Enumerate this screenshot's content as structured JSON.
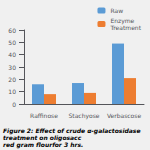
{
  "chart_data": {
    "type": "bar",
    "categories": [
      "Raffinose",
      "Stachyose",
      "Verbascose"
    ],
    "series": [
      {
        "name": "Raw",
        "color": "#5B9BD5",
        "values": [
          16,
          17,
          49
        ]
      },
      {
        "name": "Enzyme\nTreatment",
        "color": "#ED7D31",
        "values": [
          8,
          9,
          21
        ]
      }
    ],
    "ylim": [
      0,
      60
    ],
    "yticks": [
      0,
      10,
      20,
      30,
      40,
      50,
      60
    ],
    "grid": false,
    "legend": "upper right",
    "annotations": [
      "Figure 2: Effect of crude α-galactosidase treatment on oligosacc\nred gram flourfor 3 hrs."
    ]
  }
}
